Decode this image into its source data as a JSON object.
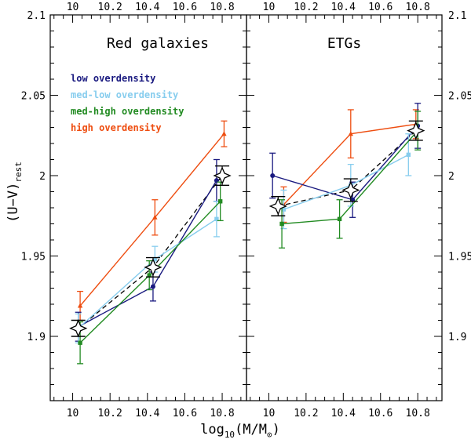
{
  "chart_data": {
    "type": "line",
    "ylim": [
      1.86,
      2.1
    ],
    "y_ticks": [
      1.9,
      1.95,
      2,
      2.05,
      2.1
    ],
    "y_tick_labels": [
      "1.9",
      "1.95",
      "2",
      "2.05",
      "2.1"
    ],
    "x_ticks": [
      10,
      10.2,
      10.4,
      10.6,
      10.8
    ],
    "x_tick_labels": [
      "10",
      "10.2",
      "10.4",
      "10.6",
      "10.8"
    ],
    "ylabel_main": "(U−V)",
    "ylabel_sub": "rest",
    "xlabel_main": "log",
    "xlabel_sub": "10",
    "xlabel_rest": "(M/M",
    "xlabel_sun": "⊙",
    "xlabel_close": ")",
    "legend": [
      {
        "name": "low overdensity",
        "color": "#1a1a80"
      },
      {
        "name": "med-low overdensity",
        "color": "#87cdee"
      },
      {
        "name": "med-high overdensity",
        "color": "#228b22"
      },
      {
        "name": "high overdensity",
        "color": "#ee4d10"
      }
    ],
    "panels": [
      {
        "title": "Red galaxies",
        "xlim": [
          9.88,
          10.93
        ],
        "series": [
          {
            "name": "high overdensity",
            "color": "#ee4d10",
            "x": [
              10.04,
              10.44,
              10.81
            ],
            "y": [
              1.919,
              1.974,
              2.026
            ],
            "err": [
              0.009,
              0.011,
              0.008
            ]
          },
          {
            "name": "low overdensity",
            "color": "#1a1a80",
            "x": [
              10.03,
              10.43,
              10.77
            ],
            "y": [
              1.906,
              1.931,
              1.997
            ],
            "err": [
              0.009,
              0.009,
              0.013
            ]
          },
          {
            "name": "med-low overdensity",
            "color": "#87cdee",
            "x": [
              10.03,
              10.44,
              10.77
            ],
            "y": [
              1.905,
              1.948,
              1.973
            ],
            "err": [
              0.009,
              0.008,
              0.011
            ]
          },
          {
            "name": "med-high overdensity",
            "color": "#228b22",
            "x": [
              10.04,
              10.41,
              10.79
            ],
            "y": [
              1.896,
              1.938,
              1.984
            ],
            "err": [
              0.013,
              0.009,
              0.012
            ]
          }
        ],
        "stacked": {
          "x": [
            10.03,
            10.43,
            10.8
          ],
          "y": [
            1.905,
            1.943,
            2.0
          ],
          "err": [
            0.005,
            0.006,
            0.006
          ]
        }
      },
      {
        "title": "ETGs",
        "xlim": [
          9.88,
          10.93
        ],
        "series": [
          {
            "name": "high overdensity",
            "color": "#ee4d10",
            "x": [
              10.08,
              10.44,
              10.79
            ],
            "y": [
              1.982,
              2.026,
              2.032
            ],
            "err": [
              0.011,
              0.015,
              0.009
            ]
          },
          {
            "name": "low overdensity",
            "color": "#1a1a80",
            "x": [
              10.02,
              10.45,
              10.8
            ],
            "y": [
              2.0,
              1.985,
              2.031
            ],
            "err": [
              0.014,
              0.011,
              0.014
            ]
          },
          {
            "name": "med-low overdensity",
            "color": "#87cdee",
            "x": [
              10.08,
              10.44,
              10.75
            ],
            "y": [
              1.979,
              1.994,
              2.013
            ],
            "err": [
              0.012,
              0.013,
              0.013
            ]
          },
          {
            "name": "med-high overdensity",
            "color": "#228b22",
            "x": [
              10.07,
              10.38,
              10.8
            ],
            "y": [
              1.97,
              1.973,
              2.028
            ],
            "err": [
              0.015,
              0.012,
              0.012
            ]
          }
        ],
        "stacked": {
          "x": [
            10.05,
            10.44,
            10.79
          ],
          "y": [
            1.981,
            1.991,
            2.028
          ],
          "err": [
            0.006,
            0.007,
            0.006
          ]
        }
      }
    ]
  }
}
